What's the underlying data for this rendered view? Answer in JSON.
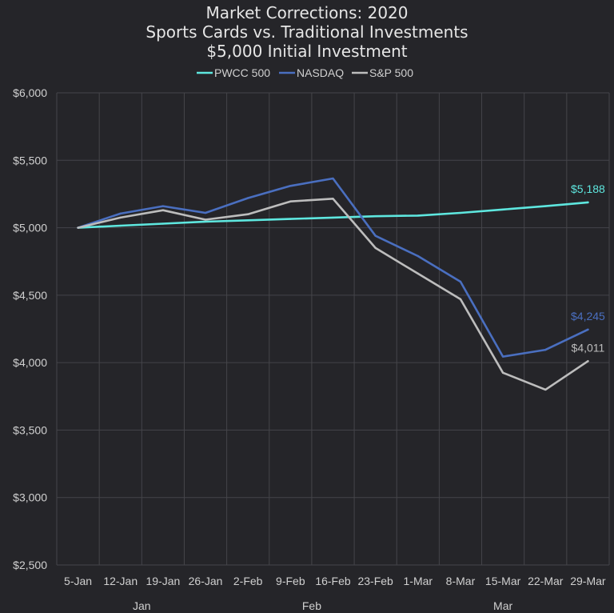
{
  "chart_data": {
    "type": "line",
    "title": [
      "Market Corrections: 2020",
      "Sports Cards vs. Traditional Investments",
      "$5,000 Initial Investment"
    ],
    "categories": [
      "5-Jan",
      "12-Jan",
      "19-Jan",
      "26-Jan",
      "2-Feb",
      "9-Feb",
      "16-Feb",
      "23-Feb",
      "1-Mar",
      "8-Mar",
      "15-Mar",
      "22-Mar",
      "29-Mar"
    ],
    "month_groups": [
      {
        "label": "Jan",
        "from": 0,
        "to": 3
      },
      {
        "label": "Feb",
        "from": 4,
        "to": 7
      },
      {
        "label": "Mar",
        "from": 8,
        "to": 12
      }
    ],
    "ylim": [
      2500,
      6000
    ],
    "yticks": [
      2500,
      3000,
      3500,
      4000,
      4500,
      5000,
      5500,
      6000
    ],
    "ytick_labels": [
      "$2,500",
      "$3,000",
      "$3,500",
      "$4,000",
      "$4,500",
      "$5,000",
      "$5,500",
      "$6,000"
    ],
    "legend_position": "top-center",
    "grid": true,
    "series": [
      {
        "name": "PWCC 500",
        "color": "#5ee7df",
        "end_label": "$5,188",
        "values": [
          5000,
          5015,
          5030,
          5045,
          5055,
          5065,
          5075,
          5085,
          5090,
          5110,
          5135,
          5160,
          5188
        ]
      },
      {
        "name": "NASDAQ",
        "color": "#4a6fc0",
        "end_label": "$4,245",
        "values": [
          5000,
          5105,
          5160,
          5110,
          5220,
          5310,
          5365,
          4940,
          4790,
          4600,
          4045,
          4095,
          4245
        ]
      },
      {
        "name": "S&P 500",
        "color": "#bdbdbd",
        "end_label": "$4,011",
        "values": [
          5000,
          5075,
          5130,
          5060,
          5100,
          5195,
          5215,
          4850,
          4660,
          4470,
          3925,
          3800,
          4011
        ]
      }
    ]
  }
}
